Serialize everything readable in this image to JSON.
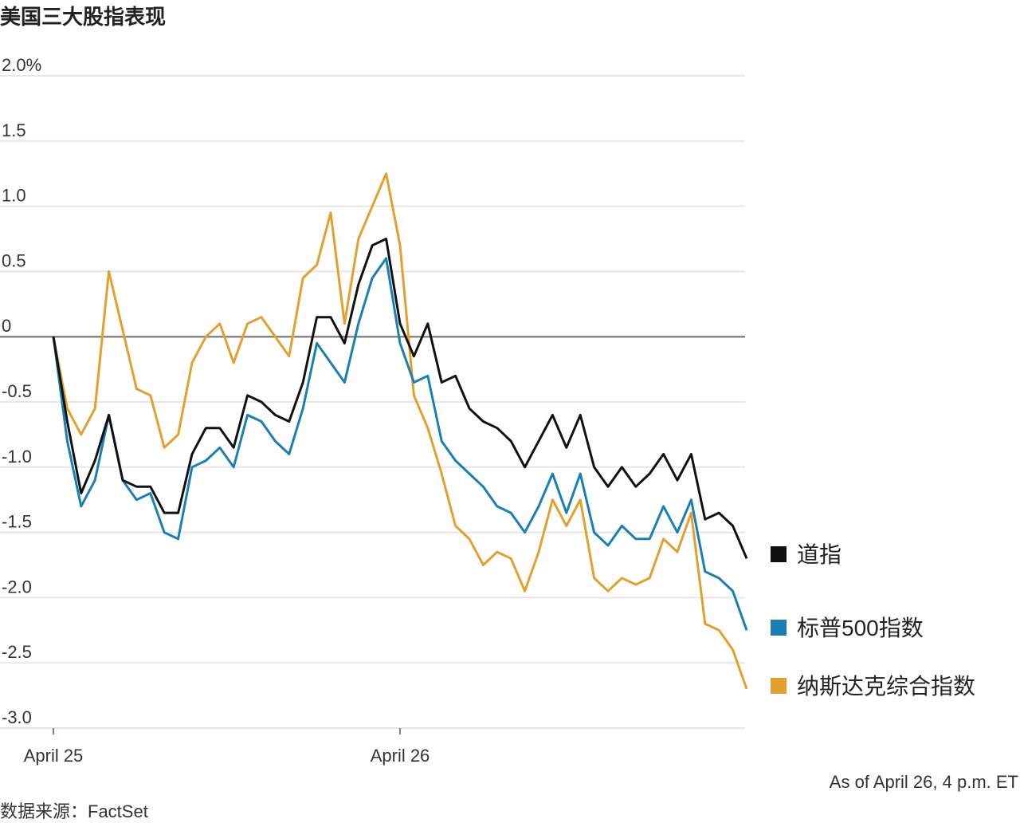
{
  "chart_data": {
    "type": "line",
    "title": "美国三大股指表现",
    "note": "As of April 26, 4 p.m. ET",
    "source": "数据来源：FactSet",
    "x": [
      0,
      0.04,
      0.08,
      0.12,
      0.16,
      0.2,
      0.24,
      0.28,
      0.32,
      0.36,
      0.4,
      0.44,
      0.48,
      0.52,
      0.56,
      0.6,
      0.64,
      0.68,
      0.72,
      0.76,
      0.8,
      0.84,
      0.88,
      0.92,
      0.96,
      1,
      1.04,
      1.08,
      1.12,
      1.16,
      1.2,
      1.24,
      1.28,
      1.32,
      1.36,
      1.4,
      1.44,
      1.48,
      1.52,
      1.56,
      1.6,
      1.64,
      1.68,
      1.72,
      1.76,
      1.8,
      1.84,
      1.88,
      1.92,
      1.96,
      2
    ],
    "series": [
      {
        "name": "道指",
        "color": "#111111",
        "values": [
          0,
          -0.65,
          -1.2,
          -0.95,
          -0.6,
          -1.1,
          -1.15,
          -1.15,
          -1.35,
          -1.35,
          -0.9,
          -0.7,
          -0.7,
          -0.85,
          -0.45,
          -0.5,
          -0.6,
          -0.65,
          -0.35,
          0.15,
          0.15,
          -0.05,
          0.4,
          0.7,
          0.75,
          0.1,
          -0.15,
          0.1,
          -0.35,
          -0.3,
          -0.55,
          -0.65,
          -0.7,
          -0.8,
          -1.0,
          -0.8,
          -0.6,
          -0.85,
          -0.6,
          -1.0,
          -1.15,
          -1.0,
          -1.15,
          -1.05,
          -0.9,
          -1.1,
          -0.9,
          -1.4,
          -1.35,
          -1.45,
          -1.7
        ]
      },
      {
        "name": "标普500指数",
        "color": "#1a7fb5",
        "values": [
          0,
          -0.8,
          -1.3,
          -1.1,
          -0.6,
          -1.1,
          -1.25,
          -1.2,
          -1.5,
          -1.55,
          -1.0,
          -0.95,
          -0.85,
          -1.0,
          -0.6,
          -0.65,
          -0.8,
          -0.9,
          -0.55,
          -0.05,
          -0.2,
          -0.35,
          0.1,
          0.45,
          0.6,
          -0.05,
          -0.35,
          -0.3,
          -0.8,
          -0.95,
          -1.05,
          -1.15,
          -1.3,
          -1.35,
          -1.5,
          -1.3,
          -1.05,
          -1.35,
          -1.05,
          -1.5,
          -1.6,
          -1.45,
          -1.55,
          -1.55,
          -1.3,
          -1.5,
          -1.25,
          -1.8,
          -1.85,
          -1.95,
          -2.25
        ]
      },
      {
        "name": "纳斯达克综合指数",
        "color": "#e3a02f",
        "values": [
          0,
          -0.55,
          -0.75,
          -0.55,
          0.5,
          0.05,
          -0.4,
          -0.45,
          -0.85,
          -0.75,
          -0.2,
          0.0,
          0.1,
          -0.2,
          0.1,
          0.15,
          0.0,
          -0.15,
          0.45,
          0.55,
          0.95,
          0.1,
          0.75,
          1.0,
          1.25,
          0.7,
          -0.45,
          -0.7,
          -1.05,
          -1.45,
          -1.55,
          -1.75,
          -1.65,
          -1.7,
          -1.95,
          -1.65,
          -1.25,
          -1.45,
          -1.25,
          -1.85,
          -1.95,
          -1.85,
          -1.9,
          -1.85,
          -1.55,
          -1.65,
          -1.35,
          -2.2,
          -2.25,
          -2.4,
          -2.7
        ]
      }
    ],
    "xlim": [
      0,
      2
    ],
    "xticks": [
      {
        "value": 0,
        "label": "April 25"
      },
      {
        "value": 1,
        "label": "April 26"
      }
    ],
    "ylim": [
      -3,
      2
    ],
    "yticks": [
      {
        "value": 2,
        "label": "2.0%"
      },
      1.5,
      {
        "value": 1,
        "label": "1.0"
      },
      0.5,
      0,
      -0.5,
      {
        "value": -1,
        "label": "-1.0"
      },
      -1.5,
      {
        "value": -2,
        "label": "-2.0"
      },
      -2.5,
      {
        "value": -3,
        "label": "-3.0"
      }
    ],
    "grid": true
  }
}
